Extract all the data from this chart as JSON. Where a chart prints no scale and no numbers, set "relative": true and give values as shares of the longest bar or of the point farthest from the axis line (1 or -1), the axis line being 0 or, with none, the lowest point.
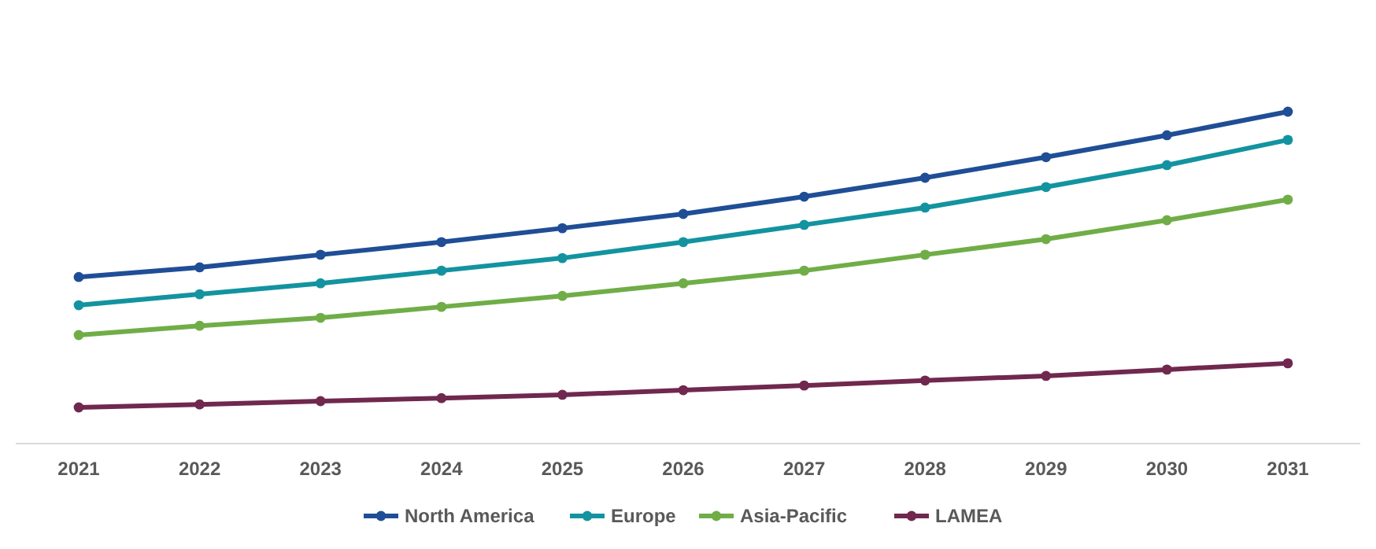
{
  "chart_data": {
    "type": "line",
    "relative": true,
    "categories": [
      "2021",
      "2022",
      "2023",
      "2024",
      "2025",
      "2026",
      "2027",
      "2028",
      "2029",
      "2030",
      "2031"
    ],
    "series": [
      {
        "name": "North America",
        "color": "#1f4e96",
        "values": [
          0.502,
          0.531,
          0.569,
          0.607,
          0.649,
          0.692,
          0.744,
          0.801,
          0.863,
          0.929,
          1
        ]
      },
      {
        "name": "Europe",
        "color": "#1393a0",
        "values": [
          0.417,
          0.45,
          0.483,
          0.521,
          0.559,
          0.607,
          0.659,
          0.711,
          0.773,
          0.839,
          0.915
        ]
      },
      {
        "name": "Asia-Pacific",
        "color": "#70ad47",
        "values": [
          0.327,
          0.355,
          0.379,
          0.412,
          0.445,
          0.483,
          0.521,
          0.569,
          0.616,
          0.673,
          0.735
        ]
      },
      {
        "name": "LAMEA",
        "color": "#70284f",
        "values": [
          0.109,
          0.118,
          0.128,
          0.137,
          0.147,
          0.161,
          0.175,
          0.19,
          0.204,
          0.223,
          0.242
        ]
      }
    ],
    "marker": "circle",
    "line_style": "solid",
    "legend": "bottom"
  }
}
